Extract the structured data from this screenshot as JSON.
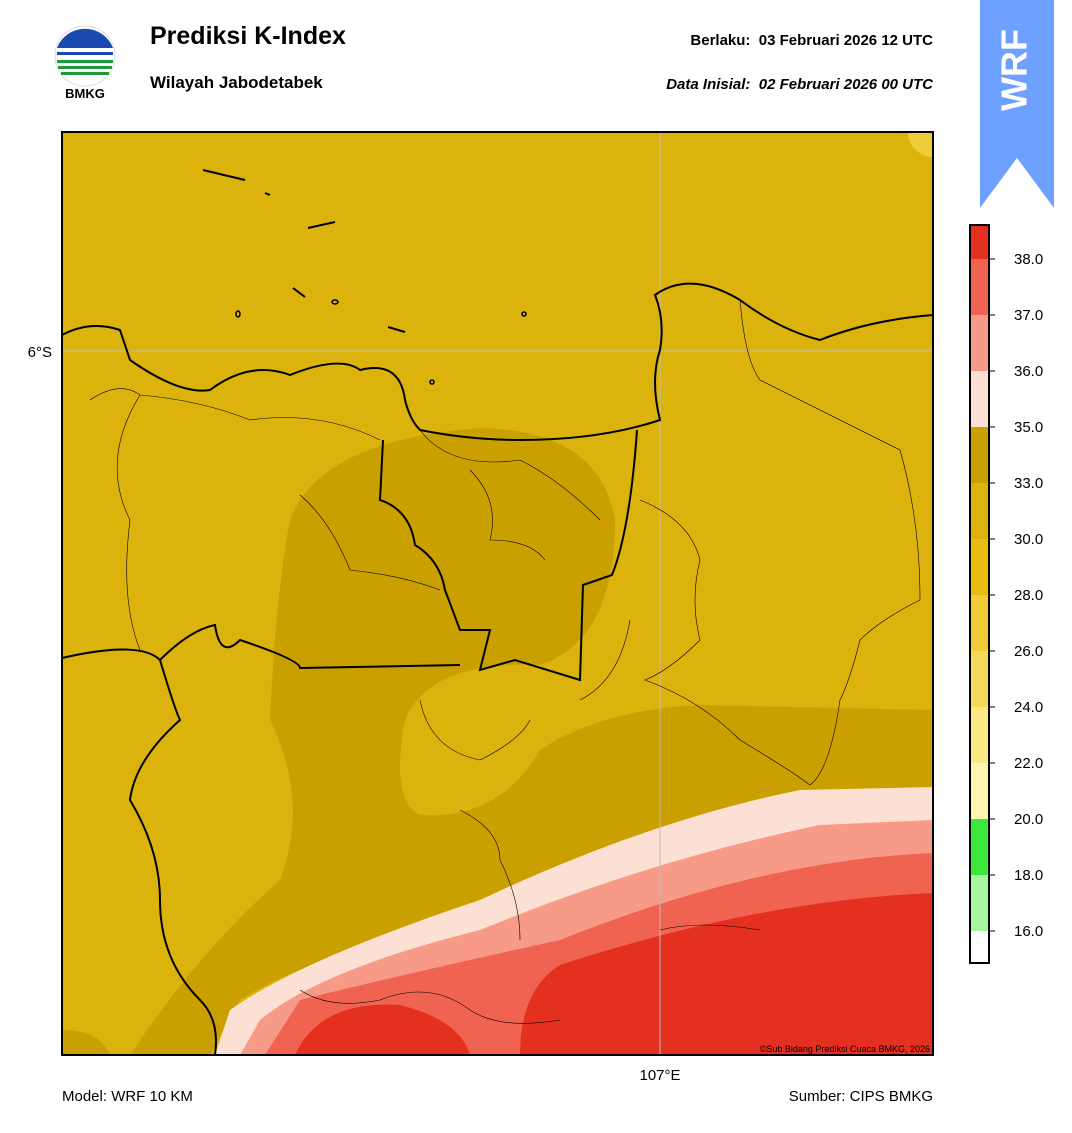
{
  "header": {
    "title": "Prediksi K-Index",
    "subtitle": "Wilayah Jabodetabek",
    "valid": "Berlaku:  03 Februari 2026 12 UTC",
    "init": "Data Inisial:  02 Februari 2026 00 UTC"
  },
  "logo": {
    "text": "BMKG"
  },
  "badge": {
    "text": "WRF"
  },
  "map": {
    "lat_label": "6°S",
    "lon_label": "107°E",
    "credit": "©Sub Bidang Prediksi Cuaca BMKG, 2026"
  },
  "colorbar": {
    "ticks": [
      {
        "value": 16,
        "label": "16.0"
      },
      {
        "value": 18,
        "label": "18.0"
      },
      {
        "value": 20,
        "label": "20.0"
      },
      {
        "value": 22,
        "label": "22.0"
      },
      {
        "value": 24,
        "label": "24.0"
      },
      {
        "value": 26,
        "label": "26.0"
      },
      {
        "value": 28,
        "label": "28.0"
      },
      {
        "value": 30,
        "label": "30.0"
      },
      {
        "value": 33,
        "label": "33.0"
      },
      {
        "value": 35,
        "label": "35.0"
      },
      {
        "value": 36,
        "label": "36.0"
      },
      {
        "value": 37,
        "label": "37.0"
      },
      {
        "value": 38,
        "label": "38.0"
      }
    ],
    "colors": [
      "#ffffff",
      "#a6f5a0",
      "#3ce83c",
      "#fff5b0",
      "#fbe884",
      "#f6d95a",
      "#f0cc38",
      "#e8bc10",
      "#dbb30c",
      "#c9a000",
      "#fde0d4",
      "#f89a88",
      "#f06350",
      "#e3301f"
    ]
  },
  "footer": {
    "model": "Model: WRF 10 KM",
    "source": "Sumber: CIPS BMKG"
  }
}
